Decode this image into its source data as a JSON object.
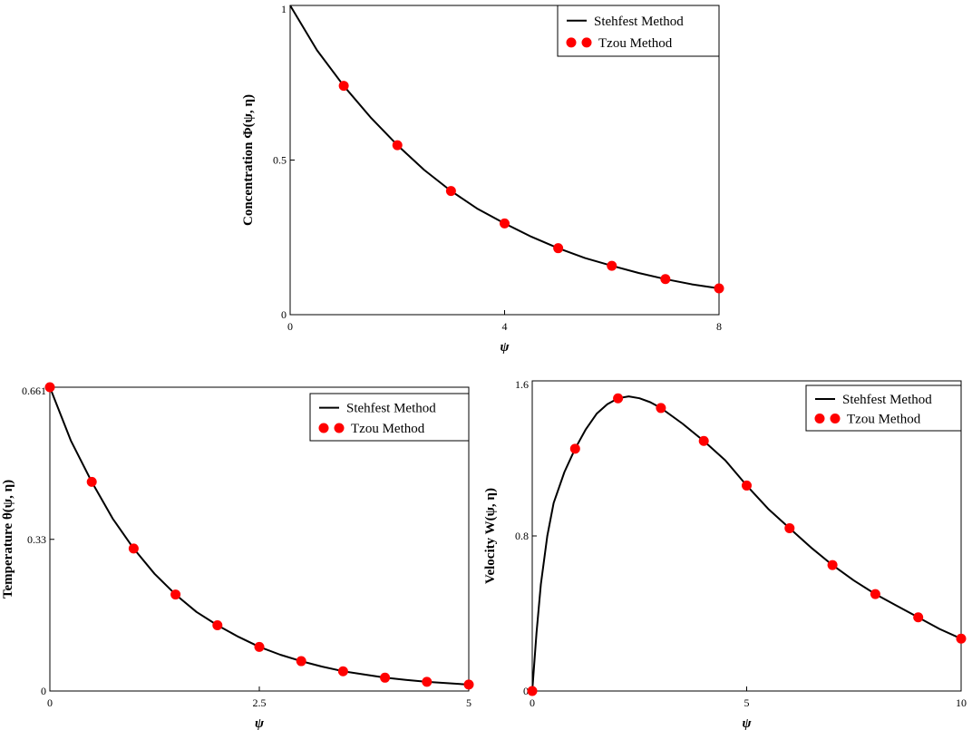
{
  "chart_data": [
    {
      "type": "line",
      "xlabel": "ψ",
      "ylabel": "Concentration  Φ(ψ, η)",
      "xlim": [
        0,
        8
      ],
      "ylim": [
        0,
        1
      ],
      "xticks": [
        "0",
        "4",
        "8"
      ],
      "yticks": [
        "0",
        "0.5",
        "1"
      ],
      "legend_position": "top-right",
      "series": [
        {
          "name": "Stehfest Method",
          "style": "line",
          "color": "#000000",
          "x": [
            0,
            0.5,
            1,
            1.5,
            2,
            2.5,
            3,
            3.5,
            4,
            4.5,
            5,
            5.5,
            6,
            6.5,
            7,
            7.5,
            8
          ],
          "y": [
            1.0,
            0.855,
            0.74,
            0.638,
            0.548,
            0.468,
            0.4,
            0.342,
            0.295,
            0.252,
            0.215,
            0.183,
            0.158,
            0.135,
            0.115,
            0.098,
            0.085
          ]
        },
        {
          "name": "Tzou Method",
          "style": "markers",
          "color": "#ff0000",
          "x": [
            1,
            2,
            3,
            4,
            5,
            6,
            7,
            8
          ],
          "y": [
            0.74,
            0.548,
            0.4,
            0.295,
            0.215,
            0.158,
            0.115,
            0.085
          ]
        }
      ]
    },
    {
      "type": "line",
      "xlabel": "ψ",
      "ylabel": "Temperature  θ(ψ, η)",
      "xlim": [
        0,
        5
      ],
      "ylim": [
        0,
        0.661
      ],
      "xticks": [
        "0",
        "2.5",
        "5"
      ],
      "yticks": [
        "0",
        "0.33",
        "0.661"
      ],
      "legend_position": "top-right",
      "series": [
        {
          "name": "Stehfest Method",
          "style": "line",
          "color": "#000000",
          "x": [
            0,
            0.25,
            0.5,
            0.75,
            1,
            1.25,
            1.5,
            1.75,
            2,
            2.25,
            2.5,
            2.75,
            3,
            3.25,
            3.5,
            3.75,
            4,
            4.25,
            4.5,
            4.75,
            5
          ],
          "y": [
            0.661,
            0.545,
            0.455,
            0.375,
            0.31,
            0.255,
            0.21,
            0.172,
            0.143,
            0.118,
            0.096,
            0.079,
            0.065,
            0.053,
            0.043,
            0.036,
            0.029,
            0.024,
            0.02,
            0.017,
            0.014
          ]
        },
        {
          "name": "Tzou Method",
          "style": "markers",
          "color": "#ff0000",
          "x": [
            0,
            0.5,
            1,
            1.5,
            2,
            2.5,
            3,
            3.5,
            4,
            4.5,
            5
          ],
          "y": [
            0.661,
            0.455,
            0.31,
            0.21,
            0.143,
            0.096,
            0.065,
            0.043,
            0.029,
            0.02,
            0.014
          ]
        }
      ]
    },
    {
      "type": "line",
      "xlabel": "ψ",
      "ylabel": "Velocity  W(ψ, η)",
      "xlim": [
        0,
        10
      ],
      "ylim": [
        0,
        1.6
      ],
      "xticks": [
        "0",
        "5",
        "10"
      ],
      "yticks": [
        "0",
        "0.8",
        "1.6"
      ],
      "legend_position": "top-right",
      "series": [
        {
          "name": "Stehfest Method",
          "style": "line",
          "color": "#000000",
          "x": [
            0,
            0.1,
            0.2,
            0.35,
            0.5,
            0.75,
            1,
            1.25,
            1.5,
            1.75,
            2,
            2.25,
            2.5,
            2.75,
            3,
            3.5,
            4,
            4.5,
            5,
            5.5,
            6,
            6.5,
            7,
            7.5,
            8,
            8.5,
            9,
            9.5,
            10
          ],
          "y": [
            0,
            0.3,
            0.55,
            0.8,
            0.97,
            1.13,
            1.25,
            1.35,
            1.43,
            1.48,
            1.51,
            1.52,
            1.51,
            1.49,
            1.46,
            1.38,
            1.29,
            1.19,
            1.06,
            0.94,
            0.84,
            0.74,
            0.65,
            0.57,
            0.5,
            0.44,
            0.38,
            0.32,
            0.27
          ]
        },
        {
          "name": "Tzou Method",
          "style": "markers",
          "color": "#ff0000",
          "x": [
            0,
            1,
            2,
            3,
            4,
            5,
            6,
            7,
            8,
            9,
            10
          ],
          "y": [
            0,
            1.25,
            1.51,
            1.46,
            1.29,
            1.06,
            0.84,
            0.65,
            0.5,
            0.38,
            0.27
          ]
        }
      ]
    }
  ]
}
